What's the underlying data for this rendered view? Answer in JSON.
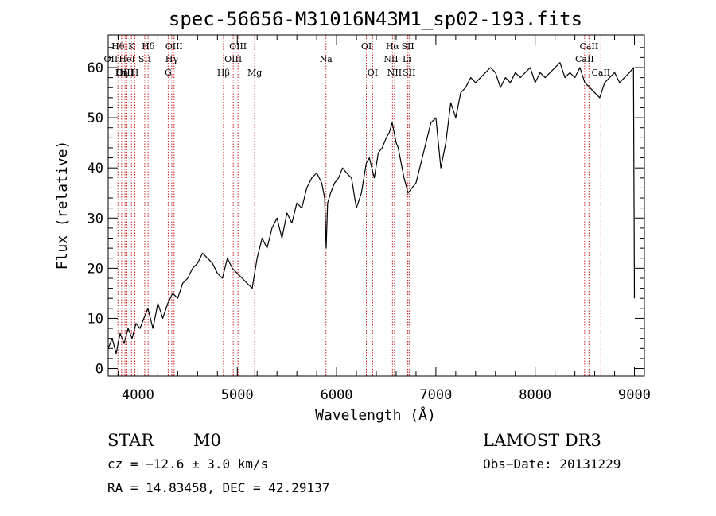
{
  "chart_data": {
    "type": "line",
    "title": "spec-56656-M31016N43M1_sp02-193.fits",
    "xlabel": "Wavelength (Å)",
    "ylabel": "Flux (relative)",
    "xlim": [
      3700,
      9100
    ],
    "ylim": [
      -1.5,
      66.5
    ],
    "xticks": [
      4000,
      5000,
      6000,
      7000,
      8000,
      9000
    ],
    "yticks": [
      0,
      10,
      20,
      30,
      40,
      50,
      60
    ],
    "series": [
      {
        "name": "spectrum",
        "x": [
          3700,
          3740,
          3780,
          3820,
          3860,
          3900,
          3940,
          3980,
          4020,
          4060,
          4100,
          4150,
          4200,
          4250,
          4300,
          4350,
          4400,
          4450,
          4500,
          4550,
          4600,
          4650,
          4700,
          4750,
          4800,
          4850,
          4900,
          4950,
          5000,
          5050,
          5100,
          5150,
          5200,
          5250,
          5300,
          5350,
          5400,
          5450,
          5500,
          5550,
          5600,
          5650,
          5700,
          5750,
          5800,
          5850,
          5880,
          5895,
          5910,
          5940,
          5980,
          6020,
          6060,
          6100,
          6150,
          6200,
          6250,
          6300,
          6330,
          6380,
          6420,
          6460,
          6500,
          6530,
          6560,
          6580,
          6600,
          6620,
          6650,
          6680,
          6720,
          6760,
          6800,
          6850,
          6900,
          6950,
          7000,
          7050,
          7100,
          7150,
          7200,
          7250,
          7300,
          7350,
          7400,
          7450,
          7500,
          7550,
          7600,
          7650,
          7700,
          7750,
          7800,
          7850,
          7900,
          7950,
          8000,
          8050,
          8100,
          8150,
          8200,
          8250,
          8300,
          8350,
          8400,
          8450,
          8500,
          8550,
          8600,
          8650,
          8700,
          8750,
          8800,
          8850,
          8900,
          8950,
          8990,
          9000
        ],
        "y": [
          4,
          6,
          3,
          7,
          5,
          8,
          6,
          9,
          8,
          10,
          12,
          8,
          13,
          10,
          13,
          15,
          14,
          17,
          18,
          20,
          21,
          23,
          22,
          21,
          19,
          18,
          22,
          20,
          19,
          18,
          17,
          16,
          22,
          26,
          24,
          28,
          30,
          26,
          31,
          29,
          33,
          32,
          36,
          38,
          39,
          37,
          34,
          24,
          33,
          35,
          37,
          38,
          40,
          39,
          38,
          32,
          35,
          41,
          42,
          38,
          43,
          44,
          46,
          47,
          49,
          47,
          45,
          44,
          41,
          38,
          35,
          36,
          37,
          41,
          45,
          49,
          50,
          40,
          45,
          53,
          50,
          55,
          56,
          58,
          57,
          58,
          59,
          60,
          59,
          56,
          58,
          57,
          59,
          58,
          59,
          60,
          57,
          59,
          58,
          59,
          60,
          61,
          58,
          59,
          58,
          60,
          57,
          56,
          55,
          54,
          57,
          58,
          59,
          57,
          58,
          59,
          60,
          14
        ]
      }
    ],
    "emission_lines": [
      {
        "label": "Hθ",
        "wave": 3798,
        "row": 1
      },
      {
        "label": "OII",
        "wave": 3727,
        "row": 2
      },
      {
        "label": "OIII",
        "wave": 3869,
        "row": 3
      },
      {
        "label": "K",
        "wave": 3934,
        "row": 1
      },
      {
        "label": "HeI",
        "wave": 3889,
        "row": 2
      },
      {
        "label": "Hη",
        "wave": 3835,
        "row": 3
      },
      {
        "label": "H",
        "wave": 3969,
        "row": 3
      },
      {
        "label": "Hδ",
        "wave": 4102,
        "row": 1
      },
      {
        "label": "SII",
        "wave": 4068,
        "row": 2
      },
      {
        "label": "OIII",
        "wave": 4363,
        "row": 1
      },
      {
        "label": "Hγ",
        "wave": 4340,
        "row": 2
      },
      {
        "label": "G",
        "wave": 4304,
        "row": 3
      },
      {
        "label": "Hβ",
        "wave": 4861,
        "row": 3
      },
      {
        "label": "OIII",
        "wave": 5007,
        "row": 1
      },
      {
        "label": "OIII",
        "wave": 4959,
        "row": 2
      },
      {
        "label": "Mg",
        "wave": 5175,
        "row": 3
      },
      {
        "label": "Na",
        "wave": 5893,
        "row": 2
      },
      {
        "label": "OI",
        "wave": 6300,
        "row": 1
      },
      {
        "label": "OI",
        "wave": 6363,
        "row": 3
      },
      {
        "label": "Hα",
        "wave": 6563,
        "row": 1
      },
      {
        "label": "NII",
        "wave": 6548,
        "row": 2
      },
      {
        "label": "NII",
        "wave": 6584,
        "row": 3
      },
      {
        "label": "SII",
        "wave": 6717,
        "row": 1
      },
      {
        "label": "Li",
        "wave": 6708,
        "row": 2
      },
      {
        "label": "SII",
        "wave": 6731,
        "row": 3
      },
      {
        "label": "CaII",
        "wave": 8542,
        "row": 1
      },
      {
        "label": "CaII",
        "wave": 8498,
        "row": 2
      },
      {
        "label": "CaII",
        "wave": 8662,
        "row": 3
      }
    ]
  },
  "info": {
    "class": "STAR",
    "subclass": "M0",
    "survey": "LAMOST DR3",
    "cz": "cz = −12.6 ± 3.0 km/s",
    "obs_date": "Obs−Date: 20131229",
    "radec": "RA =  14.83458, DEC =  42.29137"
  },
  "colors": {
    "line_marker": "#c81e1e",
    "spectrum": "#000000",
    "axis": "#000000"
  }
}
